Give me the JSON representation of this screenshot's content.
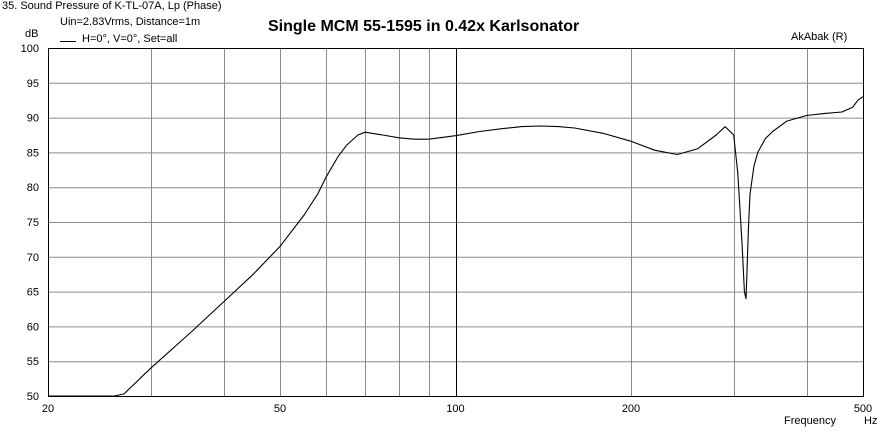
{
  "window": {
    "header": "35. Sound Pressure of K-TL-07A, Lp (Phase)",
    "conditions": "Uin=2.83Vrms, Distance=1m",
    "legend_entry": "H=0°, V=0°, Set=all",
    "y_unit": "dB",
    "watermark": "AkAbak (R)"
  },
  "chart_data": {
    "type": "line",
    "title": "Single MCM 55-1595 in 0.42x Karlsonator",
    "xlabel": "Frequency",
    "xunit": "Hz",
    "ylabel": "",
    "ylim": [
      50,
      100
    ],
    "xlim": [
      20,
      500
    ],
    "xscale": "log",
    "grid": true,
    "legend": "top-left",
    "x_ticks": [
      20,
      50,
      100,
      200,
      500
    ],
    "y_ticks": [
      50,
      55,
      60,
      65,
      70,
      75,
      80,
      85,
      90,
      95,
      100
    ],
    "series": [
      {
        "name": "H=0°, V=0°, Set=all",
        "color": "#000000",
        "x": [
          20,
          26,
          27,
          30,
          35,
          40,
          45,
          50,
          55,
          58,
          60,
          63,
          65,
          68,
          70,
          75,
          80,
          85,
          90,
          100,
          110,
          120,
          130,
          140,
          150,
          160,
          180,
          200,
          220,
          240,
          260,
          280,
          290,
          300,
          305,
          310,
          313,
          315,
          316,
          318,
          320,
          325,
          330,
          340,
          350,
          370,
          400,
          430,
          460,
          480,
          490,
          500
        ],
        "y": [
          50,
          50,
          50.3,
          54,
          59,
          63.5,
          67.5,
          71.5,
          76,
          79,
          81.5,
          84.5,
          86,
          87.5,
          87.9,
          87.5,
          87.1,
          86.9,
          86.9,
          87.4,
          88,
          88.4,
          88.7,
          88.8,
          88.7,
          88.5,
          87.7,
          86.6,
          85.3,
          84.7,
          85.5,
          87.5,
          88.7,
          87.5,
          82,
          72,
          65,
          64,
          67,
          74,
          79,
          83,
          85,
          87,
          88,
          89.5,
          90.3,
          90.6,
          90.8,
          91.5,
          92.5,
          93
        ]
      }
    ]
  }
}
